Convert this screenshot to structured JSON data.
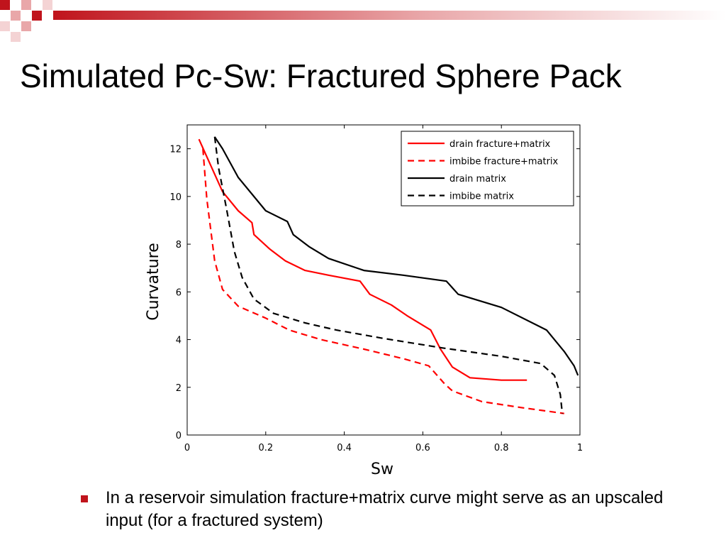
{
  "slide": {
    "title": "Simulated Pc-Sw: Fractured Sphere Pack",
    "bullet": "In a reservoir simulation fracture+matrix curve might serve as an upscaled input (for a fractured system)",
    "accent_color": "#c0141c"
  },
  "chart_data": {
    "type": "line",
    "title": "",
    "xlabel": "Sw",
    "ylabel": "Curvature",
    "xlim": [
      0,
      1
    ],
    "ylim": [
      0,
      13
    ],
    "xticks": [
      0,
      0.2,
      0.4,
      0.6,
      0.8,
      1
    ],
    "xtick_labels": [
      "0",
      "0.2",
      "0.4",
      "0.6",
      "0.8",
      "1"
    ],
    "yticks": [
      0,
      2,
      4,
      6,
      8,
      10,
      12
    ],
    "ytick_labels": [
      "0",
      "2",
      "4",
      "6",
      "8",
      "10",
      "12"
    ],
    "grid": false,
    "legend_position": "top-right",
    "series": [
      {
        "name": "drain fracture+matrix",
        "color": "#ff0000",
        "dash": "solid",
        "points": [
          [
            0.03,
            12.4
          ],
          [
            0.06,
            11.3
          ],
          [
            0.09,
            10.2
          ],
          [
            0.13,
            9.4
          ],
          [
            0.165,
            8.9
          ],
          [
            0.17,
            8.4
          ],
          [
            0.21,
            7.8
          ],
          [
            0.25,
            7.3
          ],
          [
            0.3,
            6.9
          ],
          [
            0.36,
            6.7
          ],
          [
            0.44,
            6.45
          ],
          [
            0.465,
            5.9
          ],
          [
            0.52,
            5.45
          ],
          [
            0.56,
            5.0
          ],
          [
            0.62,
            4.4
          ],
          [
            0.645,
            3.6
          ],
          [
            0.675,
            2.85
          ],
          [
            0.72,
            2.4
          ],
          [
            0.8,
            2.3
          ],
          [
            0.865,
            2.3
          ]
        ]
      },
      {
        "name": "imbibe fracture+matrix",
        "color": "#ff0000",
        "dash": "dashed",
        "points": [
          [
            0.04,
            12.0
          ],
          [
            0.05,
            9.9
          ],
          [
            0.07,
            7.3
          ],
          [
            0.09,
            6.1
          ],
          [
            0.13,
            5.4
          ],
          [
            0.2,
            4.9
          ],
          [
            0.26,
            4.4
          ],
          [
            0.34,
            4.0
          ],
          [
            0.45,
            3.6
          ],
          [
            0.55,
            3.2
          ],
          [
            0.615,
            2.9
          ],
          [
            0.655,
            2.15
          ],
          [
            0.675,
            1.85
          ],
          [
            0.75,
            1.4
          ],
          [
            0.85,
            1.15
          ],
          [
            0.96,
            0.9
          ]
        ]
      },
      {
        "name": "drain matrix",
        "color": "#000000",
        "dash": "solid",
        "points": [
          [
            0.07,
            12.5
          ],
          [
            0.09,
            12.0
          ],
          [
            0.13,
            10.8
          ],
          [
            0.2,
            9.4
          ],
          [
            0.255,
            8.95
          ],
          [
            0.27,
            8.4
          ],
          [
            0.31,
            7.9
          ],
          [
            0.36,
            7.4
          ],
          [
            0.45,
            6.9
          ],
          [
            0.55,
            6.7
          ],
          [
            0.66,
            6.45
          ],
          [
            0.69,
            5.9
          ],
          [
            0.8,
            5.35
          ],
          [
            0.915,
            4.4
          ],
          [
            0.96,
            3.5
          ],
          [
            0.985,
            2.9
          ],
          [
            0.995,
            2.5
          ]
        ]
      },
      {
        "name": "imbibe matrix",
        "color": "#000000",
        "dash": "dashed",
        "points": [
          [
            0.07,
            12.5
          ],
          [
            0.08,
            11.2
          ],
          [
            0.1,
            9.5
          ],
          [
            0.12,
            7.7
          ],
          [
            0.14,
            6.6
          ],
          [
            0.17,
            5.7
          ],
          [
            0.22,
            5.1
          ],
          [
            0.3,
            4.7
          ],
          [
            0.38,
            4.4
          ],
          [
            0.5,
            4.05
          ],
          [
            0.65,
            3.65
          ],
          [
            0.8,
            3.3
          ],
          [
            0.9,
            3.0
          ],
          [
            0.935,
            2.5
          ],
          [
            0.95,
            1.7
          ],
          [
            0.955,
            0.9
          ]
        ]
      }
    ]
  }
}
